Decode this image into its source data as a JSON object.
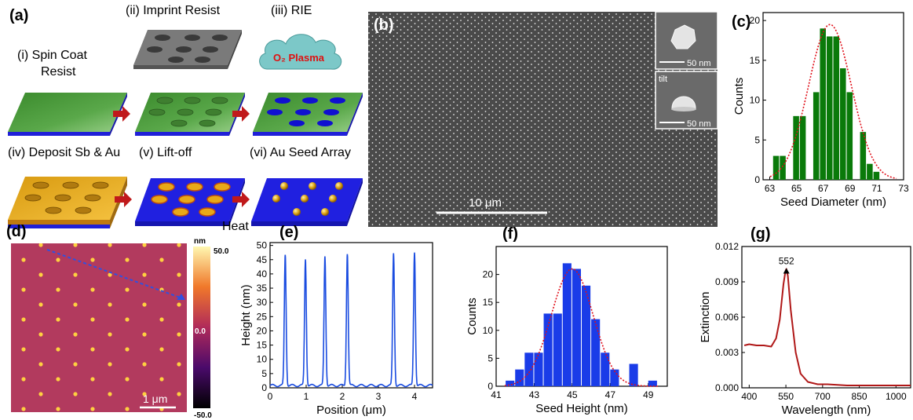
{
  "panels": {
    "a": {
      "label": "(a)",
      "steps": [
        {
          "line1": "(i) Spin Coat",
          "line2": "Resist"
        },
        {
          "line1": "(ii) Imprint Resist"
        },
        {
          "line1": "(iii) RIE"
        },
        {
          "line1": "(iv) Deposit Sb & Au"
        },
        {
          "line1": "(v) Lift-off"
        },
        {
          "line1": "(vi) Au Seed Array"
        }
      ],
      "plasma_label": "O₂ Plasma",
      "heat_label": "Heat",
      "colors": {
        "resist": "#4c9a3c",
        "substrate": "#2020d8",
        "gold": "#e5a81a",
        "stamp": "#8a8a8a",
        "plasma": "#7cc8c8",
        "arrow": "#c0191b"
      }
    },
    "b": {
      "label": "(b)",
      "scalebar": "10 μm",
      "inset1_scalebar": "50 nm",
      "inset2_tag": "tilt",
      "inset2_scalebar": "50 nm"
    },
    "d": {
      "label": "(d)",
      "scalebar": "1 μm",
      "colorbar_unit": "nm",
      "colorbar_max": "50.0",
      "colorbar_mid": "0.0",
      "colorbar_min": "-50.0"
    }
  },
  "chart_data": [
    {
      "id": "c",
      "label": "(c)",
      "type": "bar",
      "xlabel": "Seed Diameter (nm)",
      "ylabel": "Counts",
      "x": [
        63.5,
        64,
        65,
        65.5,
        66.5,
        67,
        67.5,
        68,
        68.5,
        69,
        70,
        70.5,
        71
      ],
      "values": [
        3,
        3,
        8,
        8,
        11,
        19,
        18,
        18,
        14,
        11,
        6,
        2,
        1
      ],
      "xlim": [
        62.5,
        73
      ],
      "ylim": [
        0,
        21
      ],
      "xticks": [
        "63",
        "65",
        "67",
        "69",
        "71",
        "73"
      ],
      "xtick_values": [
        63,
        65,
        67,
        69,
        71,
        73
      ],
      "yticks": [
        "0",
        "5",
        "10",
        "15",
        "20"
      ],
      "ytick_values": [
        0,
        5,
        10,
        15,
        20
      ],
      "fit": {
        "type": "gaussian",
        "center": 67.5,
        "sigma": 1.6,
        "amplitude": 19.5
      },
      "bar_color": "#0a7a0a",
      "fit_color": "#e0101a"
    },
    {
      "id": "e",
      "label": "(e)",
      "type": "line",
      "xlabel": "Position (μm)",
      "ylabel": "Height (nm)",
      "peaks_x": [
        0.42,
        0.98,
        1.52,
        2.14,
        3.42,
        4.0
      ],
      "peaks_y": [
        46,
        44.5,
        45.5,
        46.5,
        46.5,
        47
      ],
      "xlim": [
        0,
        4.5
      ],
      "ylim": [
        0,
        51
      ],
      "xticks": [
        "0",
        "1",
        "2",
        "3",
        "4"
      ],
      "xtick_values": [
        0,
        1,
        2,
        3,
        4
      ],
      "yticks": [
        "0",
        "5",
        "10",
        "15",
        "20",
        "25",
        "30",
        "35",
        "40",
        "45",
        "50"
      ],
      "ytick_values": [
        0,
        5,
        10,
        15,
        20,
        25,
        30,
        35,
        40,
        45,
        50
      ],
      "line_color": "#1a4ce0"
    },
    {
      "id": "f",
      "label": "(f)",
      "type": "bar",
      "xlabel": "Seed Height (nm)",
      "ylabel": "Counts",
      "x": [
        41.75,
        42.25,
        42.75,
        43.25,
        43.75,
        44.25,
        44.75,
        45.25,
        45.75,
        46.25,
        46.75,
        47.25,
        48.25,
        49.25
      ],
      "values": [
        1,
        3,
        6,
        6,
        13,
        13,
        22,
        21,
        18,
        12,
        6,
        3,
        4,
        1
      ],
      "xlim": [
        41,
        50
      ],
      "ylim": [
        0,
        25
      ],
      "xticks": [
        "41",
        "43",
        "45",
        "47",
        "49"
      ],
      "xtick_values": [
        41,
        43,
        45,
        47,
        49
      ],
      "yticks": [
        "0",
        "5",
        "10",
        "15",
        "20"
      ],
      "ytick_values": [
        0,
        5,
        10,
        15,
        20
      ],
      "fit": {
        "type": "gaussian",
        "center": 45.0,
        "sigma": 1.1,
        "amplitude": 21
      },
      "bar_color": "#1a3ce8",
      "fit_color": "#e0101a"
    },
    {
      "id": "g",
      "label": "(g)",
      "type": "line",
      "xlabel": "Wavelength (nm)",
      "ylabel": "Extinction",
      "peak_label": "552",
      "peak_x": 552,
      "x": [
        380,
        400,
        430,
        460,
        490,
        510,
        525,
        540,
        548,
        552,
        558,
        570,
        590,
        610,
        640,
        680,
        720,
        800,
        900,
        1000,
        1060
      ],
      "y": [
        0.0036,
        0.0037,
        0.0036,
        0.0036,
        0.0035,
        0.0042,
        0.0058,
        0.0088,
        0.0099,
        0.0101,
        0.0095,
        0.0066,
        0.003,
        0.0012,
        0.0005,
        0.0003,
        0.0003,
        0.0002,
        0.0002,
        0.0002,
        0.0002
      ],
      "xlim": [
        370,
        1060
      ],
      "ylim": [
        0,
        0.012
      ],
      "xticks": [
        "400",
        "550",
        "700",
        "850",
        "1000"
      ],
      "xtick_values": [
        400,
        550,
        700,
        850,
        1000
      ],
      "yticks": [
        "0.000",
        "0.003",
        "0.006",
        "0.009",
        "0.012"
      ],
      "ytick_values": [
        0,
        0.003,
        0.006,
        0.009,
        0.012
      ],
      "line_color": "#b01818"
    }
  ]
}
